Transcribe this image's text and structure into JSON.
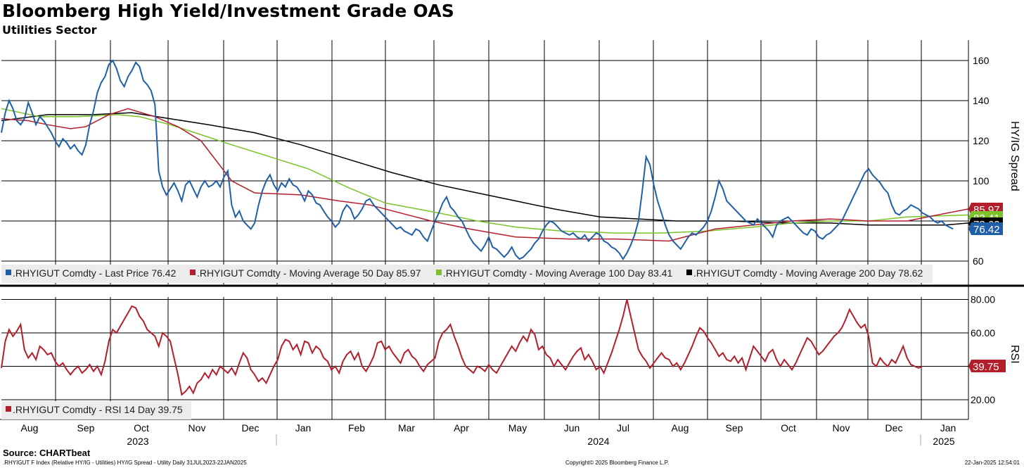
{
  "chart_data": {
    "type": "line",
    "title": "Bloomberg High Yield/Investment Grade OAS",
    "subtitle": "Utilities Sector",
    "x_range": [
      "2023-07-31",
      "2025-01-22"
    ],
    "months": [
      "Aug",
      "Sep",
      "Oct",
      "Nov",
      "Dec",
      "Jan",
      "Feb",
      "Mar",
      "Apr",
      "May",
      "Jun",
      "Jul",
      "Aug",
      "Sep",
      "Oct",
      "Nov",
      "Dec",
      "Jan"
    ],
    "years": [
      "2023",
      "2024",
      "2025"
    ],
    "grid": true,
    "panels": [
      {
        "name": "price",
        "ylabel": "HY/IG Spread",
        "yticks": [
          "160",
          "140",
          "120",
          "100",
          "60"
        ],
        "ylim": [
          55,
          168
        ],
        "legend_position": "bottom-left",
        "series": [
          {
            "name": ".RHYIGUT Comdty - Last Price 76.42",
            "color": "#1f5fa8",
            "last_label": "76.42",
            "values": [
              124,
              134,
              140,
              136,
              130,
              128,
              131,
              139,
              134,
              128,
              132,
              130,
              127,
              124,
              120,
              117,
              121,
              119,
              116,
              118,
              115,
              113,
              118,
              128,
              135,
              144,
              149,
              152,
              158,
              160,
              156,
              150,
              147,
              152,
              155,
              159,
              157,
              150,
              148,
              145,
              138,
              105,
              97,
              93,
              96,
              99,
              95,
              90,
              98,
              100,
              96,
              92,
              97,
              100,
              97,
              98,
              100,
              97,
              102,
              105,
              88,
              82,
              85,
              80,
              78,
              76,
              79,
              88,
              95,
              100,
              103,
              98,
              95,
              99,
              97,
              101,
              98,
              97,
              94,
              90,
              95,
              93,
              89,
              88,
              85,
              82,
              80,
              77,
              79,
              85,
              88,
              86,
              81,
              83,
              86,
              90,
              91,
              88,
              86,
              84,
              82,
              80,
              78,
              76,
              77,
              75,
              74,
              73,
              76,
              75,
              72,
              70,
              75,
              80,
              84,
              89,
              92,
              87,
              85,
              82,
              80,
              76,
              72,
              69,
              67,
              65,
              68,
              72,
              67,
              66,
              64,
              62,
              64,
              67,
              63,
              61,
              62,
              64,
              66,
              69,
              71,
              75,
              78,
              80,
              79,
              77,
              75,
              74,
              73,
              74,
              72,
              71,
              73,
              70,
              72,
              74,
              73,
              70,
              69,
              67,
              66,
              64,
              61,
              64,
              68,
              73,
              80,
              95,
              112,
              108,
              98,
              90,
              84,
              78,
              73,
              70,
              68,
              66,
              69,
              72,
              74,
              73,
              75,
              77,
              80,
              85,
              92,
              100,
              96,
              90,
              88,
              86,
              84,
              82,
              80,
              79,
              78,
              81,
              79,
              77,
              75,
              72,
              78,
              80,
              81,
              82,
              80,
              78,
              76,
              74,
              73,
              76,
              75,
              72,
              71,
              73,
              74,
              76,
              78,
              80,
              84,
              88,
              92,
              96,
              100,
              104,
              106,
              103,
              101,
              99,
              96,
              94,
              88,
              84,
              83,
              85,
              86,
              88,
              87,
              86,
              84,
              83,
              82,
              80,
              79,
              80,
              78,
              77,
              76
            ],
            "stats": {
              "min": 61,
              "max": 160,
              "last": 76.42
            }
          },
          {
            "name": ".RHYIGUT Comdty - Moving Average 50 Day 85.97",
            "color": "#b41e2b",
            "last_label": "85.97",
            "points": [
              [
                0,
                131
              ],
              [
                7,
                130
              ],
              [
                12,
                128
              ],
              [
                18,
                126
              ],
              [
                22,
                127
              ],
              [
                28,
                133
              ],
              [
                33,
                136
              ],
              [
                40,
                132
              ],
              [
                46,
                127
              ],
              [
                52,
                120
              ],
              [
                56,
                110
              ],
              [
                60,
                100
              ],
              [
                66,
                94
              ],
              [
                78,
                93
              ],
              [
                88,
                90
              ],
              [
                96,
                88
              ],
              [
                102,
                85
              ],
              [
                112,
                80
              ],
              [
                122,
                76
              ],
              [
                134,
                72
              ],
              [
                148,
                71
              ],
              [
                160,
                71
              ],
              [
                174,
                70
              ],
              [
                180,
                73
              ],
              [
                186,
                76
              ],
              [
                196,
                78
              ],
              [
                206,
                80
              ],
              [
                216,
                81
              ],
              [
                226,
                80
              ],
              [
                236,
                80
              ],
              [
                244,
                83
              ],
              [
                252,
                86
              ]
            ]
          },
          {
            "name": ".RHYIGUT Comdty - Moving Average 100 Day 83.41",
            "color": "#7cc22a",
            "last_label": "83.41",
            "points": [
              [
                0,
                136
              ],
              [
                10,
                132
              ],
              [
                20,
                132
              ],
              [
                30,
                133
              ],
              [
                36,
                132
              ],
              [
                44,
                128
              ],
              [
                52,
                123
              ],
              [
                60,
                118
              ],
              [
                70,
                112
              ],
              [
                80,
                106
              ],
              [
                90,
                97
              ],
              [
                100,
                89
              ],
              [
                114,
                84
              ],
              [
                124,
                80
              ],
              [
                134,
                77
              ],
              [
                146,
                75
              ],
              [
                160,
                74
              ],
              [
                172,
                74
              ],
              [
                184,
                75
              ],
              [
                196,
                77
              ],
              [
                206,
                79
              ],
              [
                216,
                80
              ],
              [
                226,
                80
              ],
              [
                236,
                82
              ],
              [
                252,
                83
              ]
            ]
          },
          {
            "name": ".RHYIGUT Comdty - Moving Average 200 Day 78.62",
            "color": "#000000",
            "last_label": "78.62",
            "points": [
              [
                0,
                130
              ],
              [
                12,
                133
              ],
              [
                24,
                133
              ],
              [
                34,
                134
              ],
              [
                44,
                131
              ],
              [
                54,
                128
              ],
              [
                66,
                124
              ],
              [
                78,
                118
              ],
              [
                90,
                111
              ],
              [
                102,
                104
              ],
              [
                114,
                98
              ],
              [
                124,
                94
              ],
              [
                134,
                90
              ],
              [
                144,
                86
              ],
              [
                156,
                82
              ],
              [
                166,
                81
              ],
              [
                176,
                80
              ],
              [
                190,
                80
              ],
              [
                204,
                79
              ],
              [
                216,
                79
              ],
              [
                226,
                78
              ],
              [
                236,
                78
              ],
              [
                246,
                78
              ],
              [
                252,
                79
              ]
            ]
          }
        ]
      },
      {
        "name": "rsi",
        "ylabel": "RSI",
        "yticks": [
          "80.00",
          "60.00",
          "20.00"
        ],
        "ylim": [
          12,
          84
        ],
        "legend_position": "bottom-left",
        "series": [
          {
            "name": ".RHYIGUT Comdty - RSI 14 Day 39.75",
            "color": "#b41e2b",
            "last_label": "39.75",
            "values": [
              39,
              55,
              62,
              58,
              61,
              65,
              50,
              45,
              48,
              44,
              52,
              50,
              47,
              48,
              43,
              40,
              42,
              38,
              35,
              38,
              40,
              36,
              38,
              41,
              37,
              40,
              35,
              43,
              55,
              62,
              60,
              64,
              68,
              72,
              76,
              75,
              70,
              67,
              62,
              60,
              58,
              52,
              60,
              58,
              55,
              45,
              35,
              23,
              25,
              28,
              24,
              30,
              32,
              36,
              33,
              38,
              35,
              40,
              38,
              36,
              39,
              35,
              42,
              48,
              45,
              38,
              35,
              31,
              33,
              30,
              35,
              40,
              44,
              52,
              56,
              55,
              50,
              53,
              47,
              55,
              54,
              48,
              52,
              50,
              45,
              43,
              38,
              40,
              36,
              43,
              47,
              49,
              44,
              48,
              40,
              37,
              41,
              46,
              54,
              55,
              50,
              52,
              48,
              45,
              42,
              48,
              50,
              46,
              44,
              40,
              37,
              41,
              43,
              45,
              55,
              60,
              62,
              65,
              58,
              52,
              45,
              40,
              38,
              36,
              40,
              39,
              37,
              41,
              38,
              36,
              40,
              44,
              48,
              52,
              49,
              54,
              58,
              55,
              62,
              59,
              50,
              52,
              47,
              45,
              40,
              44,
              41,
              38,
              42,
              46,
              49,
              51,
              44,
              47,
              43,
              38,
              40,
              36,
              42,
              48,
              55,
              62,
              70,
              80,
              70,
              60,
              50,
              46,
              43,
              39,
              42,
              45,
              48,
              45,
              44,
              40,
              42,
              38,
              42,
              47,
              52,
              58,
              63,
              61,
              57,
              54,
              50,
              46,
              48,
              44,
              43,
              46,
              42,
              45,
              38,
              45,
              52,
              49,
              46,
              43,
              48,
              50,
              44,
              40,
              44,
              41,
              38,
              42,
              47,
              52,
              57,
              55,
              51,
              47,
              49,
              52,
              55,
              58,
              60,
              63,
              68,
              74,
              70,
              66,
              63,
              65,
              58,
              42,
              40,
              45,
              42,
              40,
              44,
              42,
              47,
              52,
              45,
              41,
              40,
              39,
              40
            ]
          }
        ]
      }
    ]
  },
  "source": "Source: CHARTbeat",
  "footer": {
    "left": ".RHYIGUT F Index (Relative HY/IG - Utilities) HY/IG Spread - Utility  Daily 31JUL2023-22JAN2025",
    "center": "Copyright© 2025 Bloomberg Finance L.P.",
    "right": "22-Jan-2025 12:54:01"
  }
}
